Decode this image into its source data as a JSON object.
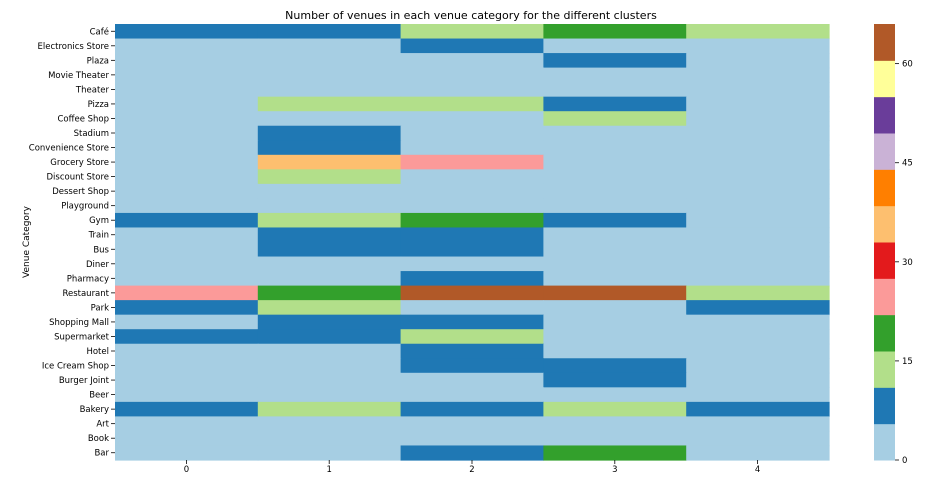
{
  "chart_data": {
    "type": "heatmap",
    "title": "Number of venues in each venue category for the different clusters",
    "ylabel": "Venue Category",
    "xlabel": "",
    "x": [
      "0",
      "1",
      "2",
      "3",
      "4"
    ],
    "y": [
      "Café",
      "Electronics Store",
      "Plaza",
      "Movie Theater",
      "Theater",
      "Pizza",
      "Coffee Shop",
      "Stadium",
      "Convenience Store",
      "Grocery Store",
      "Discount Store",
      "Dessert Shop",
      "Playground",
      "Gym",
      "Train",
      "Bus",
      "Diner",
      "Pharmacy",
      "Restaurant",
      "Park",
      "Shopping Mall",
      "Supermarket",
      "Hotel",
      "Ice Cream Shop",
      "Burger Joint",
      "Beer",
      "Bakery",
      "Art",
      "Book",
      "Bar"
    ],
    "values": [
      [
        8,
        8,
        14,
        20,
        14
      ],
      [
        2,
        2,
        8,
        2,
        2
      ],
      [
        2,
        2,
        2,
        8,
        2
      ],
      [
        2,
        2,
        2,
        2,
        2
      ],
      [
        2,
        2,
        2,
        2,
        2
      ],
      [
        2,
        14,
        14,
        8,
        2
      ],
      [
        2,
        2,
        2,
        14,
        2
      ],
      [
        2,
        8,
        2,
        2,
        2
      ],
      [
        2,
        8,
        2,
        2,
        2
      ],
      [
        2,
        36,
        26,
        2,
        2
      ],
      [
        2,
        14,
        2,
        2,
        2
      ],
      [
        2,
        2,
        2,
        2,
        2
      ],
      [
        2,
        2,
        2,
        2,
        2
      ],
      [
        8,
        14,
        20,
        8,
        2
      ],
      [
        2,
        8,
        8,
        2,
        2
      ],
      [
        2,
        8,
        8,
        2,
        2
      ],
      [
        2,
        2,
        2,
        2,
        2
      ],
      [
        2,
        2,
        8,
        2,
        2
      ],
      [
        26,
        20,
        62,
        62,
        14
      ],
      [
        8,
        14,
        2,
        2,
        8
      ],
      [
        2,
        8,
        8,
        2,
        2
      ],
      [
        8,
        8,
        14,
        2,
        2
      ],
      [
        2,
        2,
        8,
        2,
        2
      ],
      [
        2,
        2,
        8,
        8,
        2
      ],
      [
        2,
        2,
        2,
        8,
        2
      ],
      [
        2,
        2,
        2,
        2,
        2
      ],
      [
        8,
        14,
        8,
        14,
        8
      ],
      [
        2,
        2,
        2,
        2,
        2
      ],
      [
        2,
        2,
        2,
        2,
        2
      ],
      [
        2,
        2,
        8,
        20,
        2
      ]
    ],
    "colormap": "Paired",
    "colors": [
      "#a6cee3",
      "#1f78b4",
      "#b2df8a",
      "#33a02c",
      "#fb9a99",
      "#e31a1c",
      "#fdbf6f",
      "#ff7f00",
      "#cab2d6",
      "#6a3d9a",
      "#ffff99",
      "#b15928"
    ],
    "vmin": 0,
    "vmax": 66,
    "colorbar_ticks": [
      0,
      15,
      30,
      45,
      60
    ]
  }
}
